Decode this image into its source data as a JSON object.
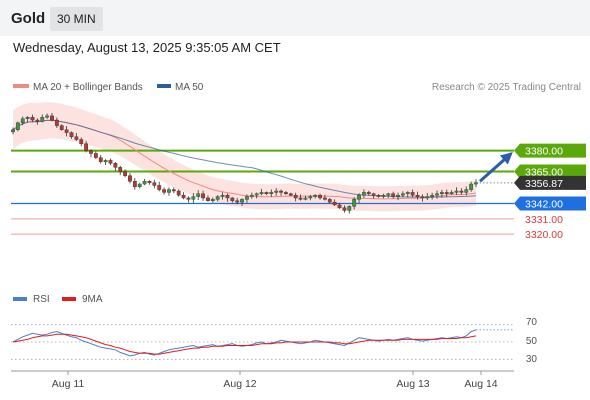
{
  "header": {
    "symbol": "Gold",
    "timeframe": "30 MIN"
  },
  "datetime": "Wednesday, August 13, 2025 9:35:05 AM CET",
  "legend": {
    "items": [
      {
        "label": "MA 20 + Bollinger Bands",
        "color": "#f08a84"
      },
      {
        "label": "MA 50",
        "color": "#2f5c9a"
      }
    ],
    "credit": "Research © 2025 Trading Central"
  },
  "chart_data": [
    {
      "type": "candlestick",
      "x_ticks": [
        "Aug 11",
        "Aug 12",
        "Aug 13",
        "Aug 14"
      ],
      "ylim": [
        3305,
        3420
      ],
      "close_series": [
        3395,
        3400,
        3403,
        3404,
        3402,
        3401,
        3404,
        3405,
        3402,
        3398,
        3395,
        3393,
        3390,
        3388,
        3385,
        3380,
        3378,
        3375,
        3372,
        3373,
        3371,
        3368,
        3365,
        3362,
        3358,
        3354,
        3356,
        3358,
        3357,
        3355,
        3352,
        3350,
        3352,
        3351,
        3348,
        3346,
        3345,
        3347,
        3349,
        3346,
        3344,
        3345,
        3347,
        3348,
        3346,
        3344,
        3343,
        3345,
        3347,
        3348,
        3349,
        3350,
        3349,
        3350,
        3351,
        3350,
        3349,
        3348,
        3346,
        3345,
        3346,
        3347,
        3348,
        3346,
        3345,
        3343,
        3341,
        3339,
        3337,
        3340,
        3345,
        3348,
        3350,
        3349,
        3348,
        3347,
        3348,
        3349,
        3347,
        3348,
        3349,
        3350,
        3348,
        3347,
        3346,
        3347,
        3348,
        3349,
        3350,
        3349,
        3350,
        3351,
        3350,
        3352,
        3356,
        3357
      ],
      "indicators": [
        {
          "name": "MA 20 + Bollinger Bands",
          "color": "#f08a84"
        },
        {
          "name": "MA 50",
          "color": "#2f5c9a"
        }
      ],
      "levels": [
        {
          "value": 3380.0,
          "label": "3380.00",
          "color": "#5aa80a",
          "style": "resistance"
        },
        {
          "value": 3365.0,
          "label": "3365.00",
          "color": "#5aa80a",
          "style": "resistance"
        },
        {
          "value": 3356.87,
          "label": "3356.87",
          "color": "#333333",
          "style": "last-price"
        },
        {
          "value": 3342.0,
          "label": "3342.00",
          "color": "#1f6fe0",
          "style": "pivot"
        },
        {
          "value": 3331.0,
          "label": "3331.00",
          "color": "#e23a3a",
          "style": "support"
        },
        {
          "value": 3320.0,
          "label": "3320.00",
          "color": "#e23a3a",
          "style": "support"
        }
      ],
      "forecast_arrow": {
        "from": 3358,
        "to": 3380,
        "color": "#2a5db0"
      }
    },
    {
      "type": "line",
      "name": "RSI",
      "legend": [
        {
          "label": "RSI",
          "color": "#4a7fd0"
        },
        {
          "label": "9MA",
          "color": "#e01e1e"
        }
      ],
      "ylim": [
        20,
        80
      ],
      "y_ticks": [
        "70",
        "50",
        "30"
      ],
      "rsi": [
        50,
        53,
        56,
        58,
        60,
        59,
        58,
        59,
        61,
        62,
        60,
        58,
        56,
        55,
        52,
        50,
        48,
        46,
        44,
        43,
        42,
        41,
        38,
        36,
        34,
        35,
        37,
        38,
        36,
        35,
        37,
        39,
        41,
        42,
        43,
        44,
        45,
        46,
        44,
        45,
        46,
        47,
        45,
        46,
        47,
        48,
        46,
        45,
        46,
        47,
        49,
        50,
        48,
        49,
        50,
        52,
        51,
        50,
        49,
        48,
        49,
        50,
        52,
        51,
        50,
        49,
        48,
        47,
        46,
        49,
        52,
        55,
        54,
        53,
        52,
        51,
        52,
        53,
        52,
        53,
        54,
        55,
        53,
        52,
        51,
        52,
        53,
        54,
        55,
        54,
        55,
        56,
        55,
        57,
        62,
        64
      ],
      "ma9": [
        50,
        51,
        52,
        53,
        55,
        56,
        57,
        57,
        58,
        59,
        59,
        59,
        58,
        57,
        56,
        55,
        53,
        51,
        49,
        47,
        46,
        44,
        43,
        41,
        39,
        38,
        37,
        37,
        37,
        36,
        36,
        37,
        38,
        39,
        40,
        41,
        42,
        43,
        43,
        44,
        44,
        45,
        45,
        45,
        46,
        46,
        46,
        46,
        46,
        46,
        47,
        48,
        48,
        48,
        49,
        49,
        50,
        50,
        50,
        50,
        50,
        50,
        50,
        50,
        50,
        50,
        49,
        49,
        48,
        48,
        49,
        50,
        51,
        52,
        52,
        52,
        52,
        52,
        52,
        52,
        53,
        53,
        53,
        53,
        53,
        53,
        53,
        53,
        54,
        54,
        54,
        54,
        55,
        55,
        56,
        57
      ]
    }
  ]
}
